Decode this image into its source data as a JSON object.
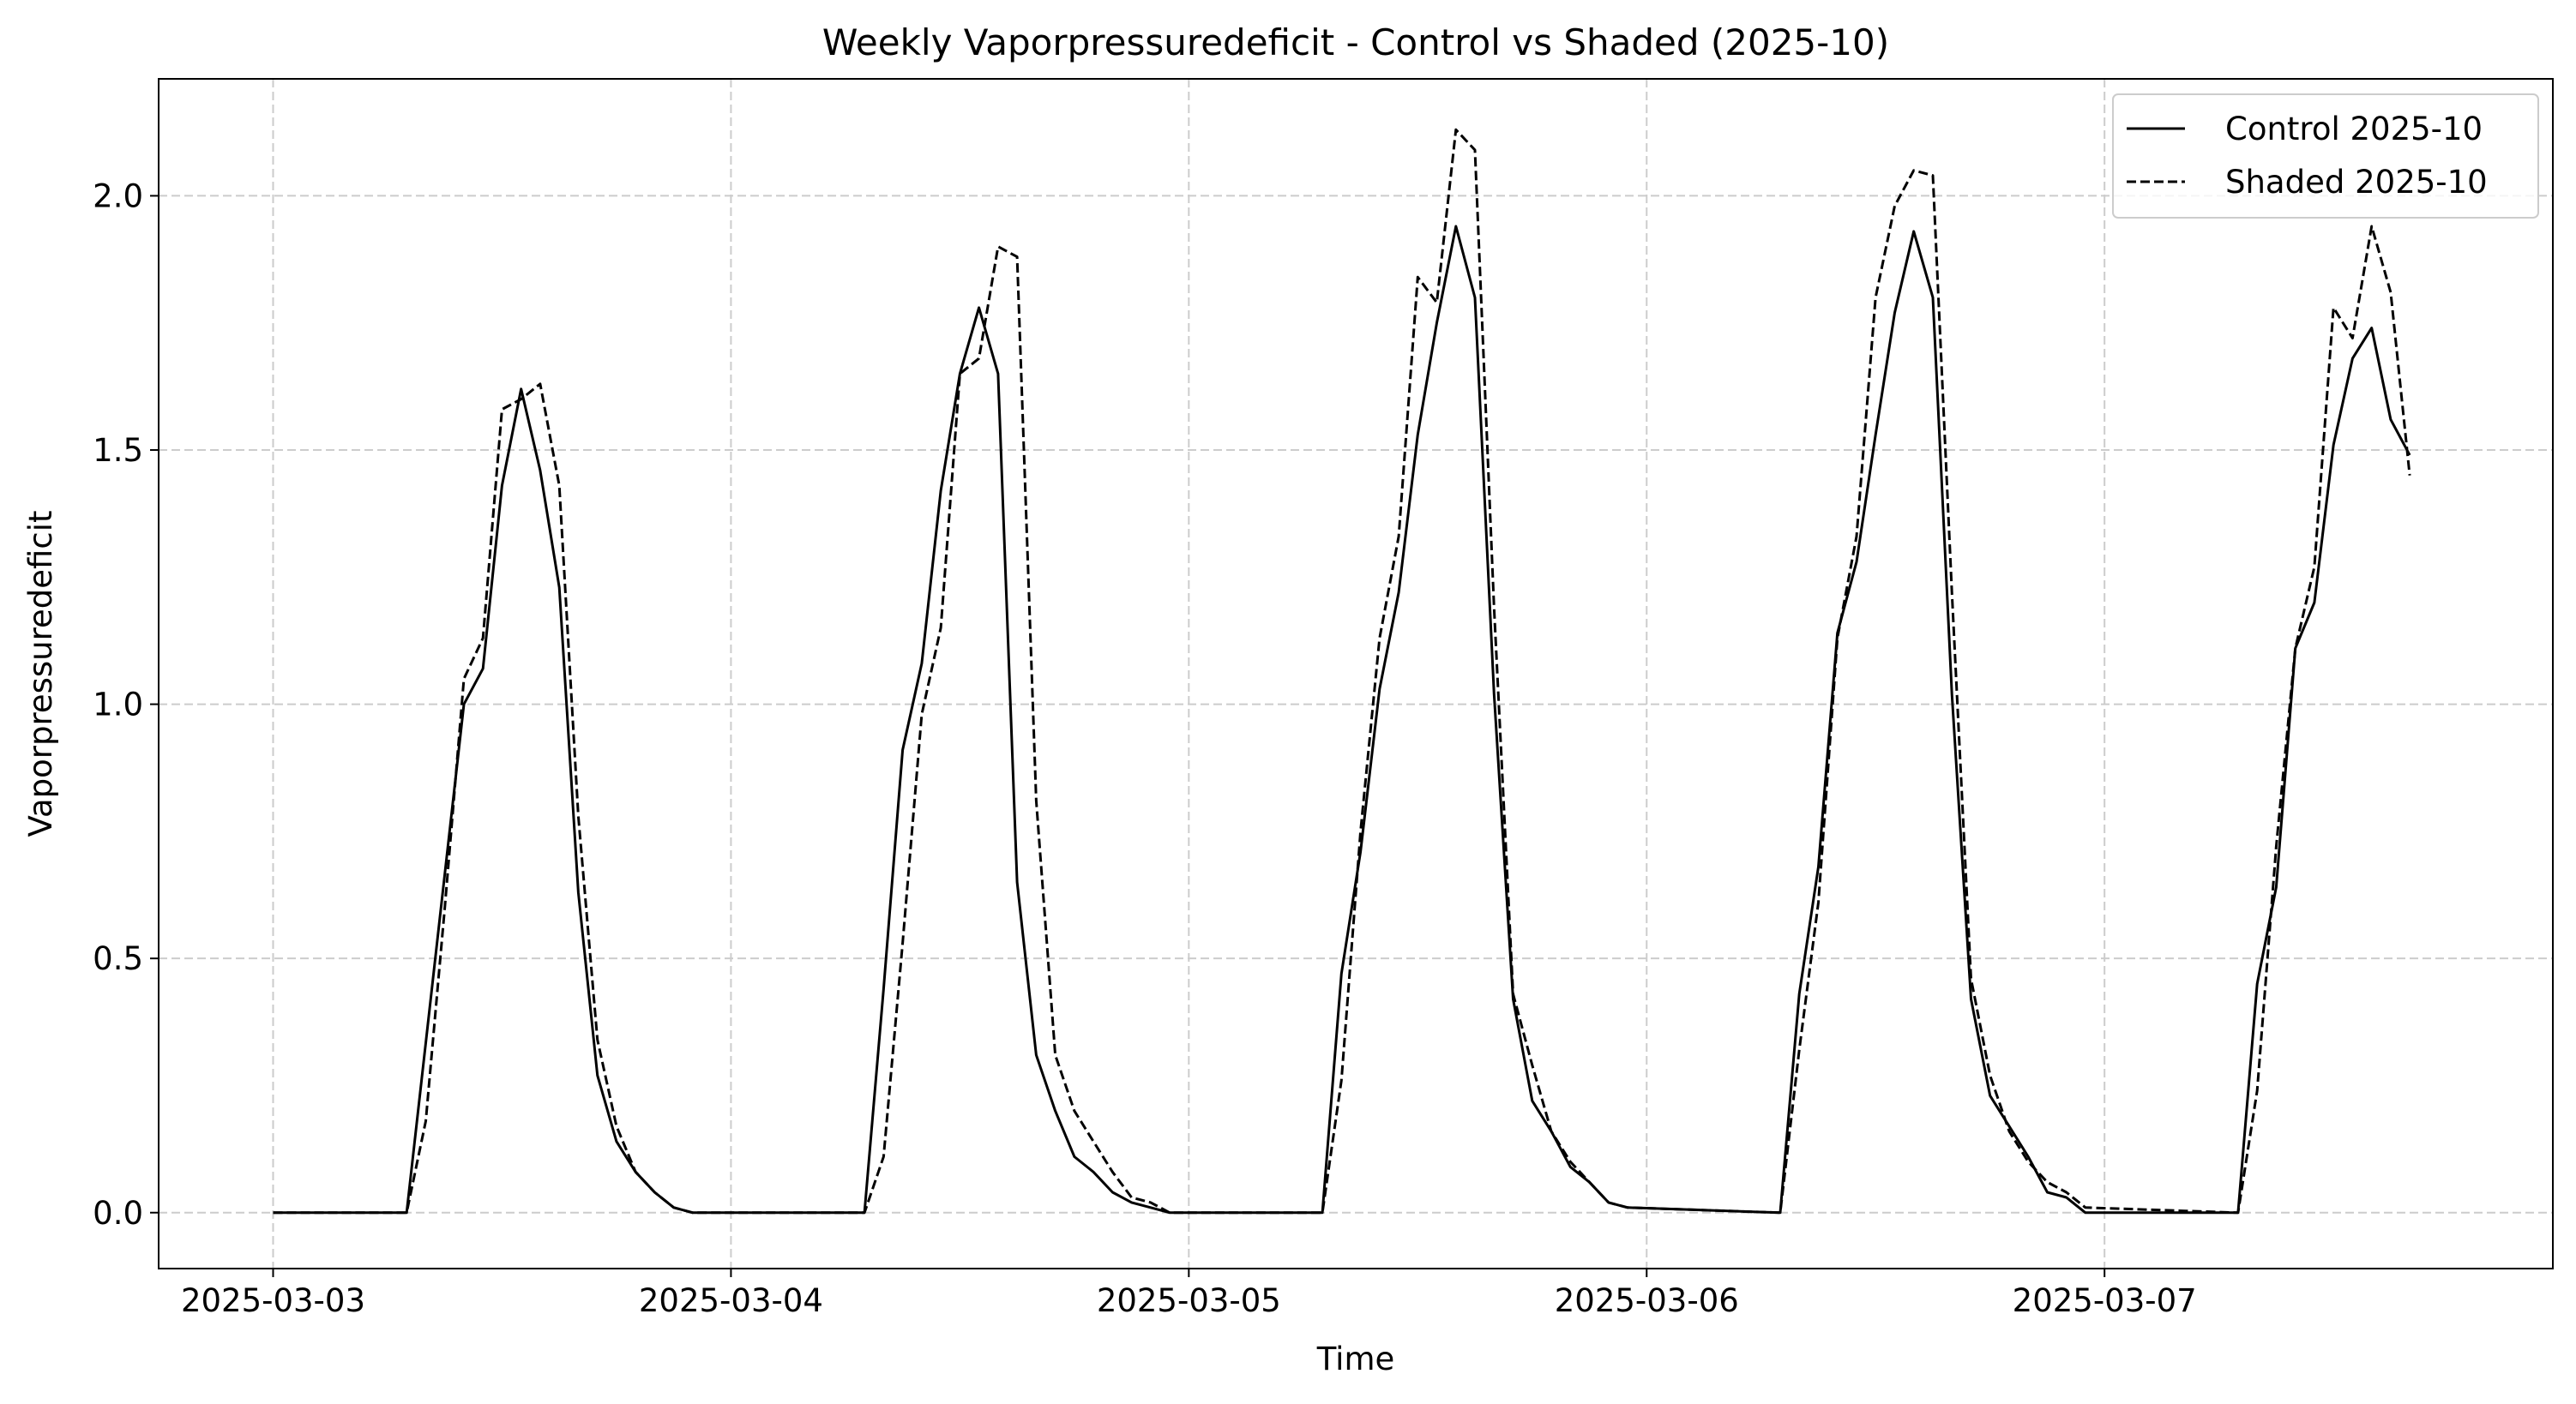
{
  "chart_data": {
    "type": "line",
    "title": "Weekly Vaporpressuredeficit - Control vs Shaded (2025-10)",
    "xlabel": "Time",
    "ylabel": "Vaporpressuredeficit",
    "x_axis_type": "datetime",
    "xlim": [
      "2025-03-02 18:00",
      "2025-03-07 23:30"
    ],
    "ylim": [
      -0.11,
      2.23
    ],
    "xticks": [
      "2025-03-03",
      "2025-03-04",
      "2025-03-05",
      "2025-03-06",
      "2025-03-07"
    ],
    "yticks": [
      0.0,
      0.5,
      1.0,
      1.5,
      2.0
    ],
    "ytick_labels": [
      "0.0",
      "0.5",
      "1.0",
      "1.5",
      "2.0"
    ],
    "grid": true,
    "grid_style": "dashed",
    "legend_position": "top-right",
    "series": [
      {
        "name": "Control 2025-10",
        "line_style": "solid",
        "color": "#000000",
        "x": [
          "2025-03-03 00:00",
          "2025-03-03 07:00",
          "2025-03-03 10:00",
          "2025-03-03 11:00",
          "2025-03-03 12:00",
          "2025-03-03 13:00",
          "2025-03-03 14:00",
          "2025-03-03 15:00",
          "2025-03-03 16:00",
          "2025-03-03 17:00",
          "2025-03-03 18:00",
          "2025-03-03 19:00",
          "2025-03-03 20:00",
          "2025-03-03 21:00",
          "2025-03-03 22:00",
          "2025-03-04 07:00",
          "2025-03-04 08:00",
          "2025-03-04 09:00",
          "2025-03-04 10:00",
          "2025-03-04 11:00",
          "2025-03-04 12:00",
          "2025-03-04 13:00",
          "2025-03-04 14:00",
          "2025-03-04 15:00",
          "2025-03-04 16:00",
          "2025-03-04 17:00",
          "2025-03-04 18:00",
          "2025-03-04 19:00",
          "2025-03-04 20:00",
          "2025-03-04 21:00",
          "2025-03-04 22:00",
          "2025-03-04 23:00",
          "2025-03-05 07:00",
          "2025-03-05 08:00",
          "2025-03-05 09:00",
          "2025-03-05 10:00",
          "2025-03-05 11:00",
          "2025-03-05 12:00",
          "2025-03-05 13:00",
          "2025-03-05 14:00",
          "2025-03-05 15:00",
          "2025-03-05 16:00",
          "2025-03-05 17:00",
          "2025-03-05 18:00",
          "2025-03-05 19:00",
          "2025-03-05 20:00",
          "2025-03-05 21:00",
          "2025-03-05 22:00",
          "2025-03-05 23:00",
          "2025-03-06 07:00",
          "2025-03-06 08:00",
          "2025-03-06 09:00",
          "2025-03-06 10:00",
          "2025-03-06 11:00",
          "2025-03-06 12:00",
          "2025-03-06 13:00",
          "2025-03-06 14:00",
          "2025-03-06 15:00",
          "2025-03-06 16:00",
          "2025-03-06 17:00",
          "2025-03-06 18:00",
          "2025-03-06 19:00",
          "2025-03-06 20:00",
          "2025-03-06 21:00",
          "2025-03-06 22:00",
          "2025-03-06 23:00",
          "2025-03-07 07:00",
          "2025-03-07 08:00",
          "2025-03-07 09:00",
          "2025-03-07 10:00",
          "2025-03-07 11:00",
          "2025-03-07 12:00",
          "2025-03-07 13:00",
          "2025-03-07 14:00",
          "2025-03-07 15:00",
          "2025-03-07 16:00"
        ],
        "y": [
          0.0,
          0.0,
          1.0,
          1.07,
          1.43,
          1.62,
          1.46,
          1.23,
          0.63,
          0.27,
          0.14,
          0.08,
          0.04,
          0.01,
          0.0,
          0.0,
          0.44,
          0.91,
          1.08,
          1.42,
          1.65,
          1.78,
          1.65,
          0.65,
          0.31,
          0.2,
          0.11,
          0.08,
          0.04,
          0.02,
          0.01,
          0.0,
          0.0,
          0.47,
          0.71,
          1.03,
          1.22,
          1.53,
          1.75,
          1.94,
          1.8,
          1.02,
          0.42,
          0.22,
          0.16,
          0.09,
          0.06,
          0.02,
          0.01,
          0.0,
          0.43,
          0.68,
          1.14,
          1.28,
          1.53,
          1.77,
          1.93,
          1.8,
          1.02,
          0.42,
          0.23,
          0.17,
          0.11,
          0.04,
          0.03,
          0.0,
          0.0,
          0.45,
          0.64,
          1.11,
          1.2,
          1.51,
          1.68,
          1.74,
          1.56,
          1.49
        ]
      },
      {
        "name": "Shaded 2025-10",
        "line_style": "dashed",
        "color": "#000000",
        "x": [
          "2025-03-03 00:00",
          "2025-03-03 07:00",
          "2025-03-03 08:00",
          "2025-03-03 09:00",
          "2025-03-03 10:00",
          "2025-03-03 11:00",
          "2025-03-03 12:00",
          "2025-03-03 13:00",
          "2025-03-03 14:00",
          "2025-03-03 15:00",
          "2025-03-03 16:00",
          "2025-03-03 17:00",
          "2025-03-03 18:00",
          "2025-03-03 19:00",
          "2025-03-03 20:00",
          "2025-03-03 21:00",
          "2025-03-03 22:00",
          "2025-03-04 07:00",
          "2025-03-04 08:00",
          "2025-03-04 09:00",
          "2025-03-04 10:00",
          "2025-03-04 11:00",
          "2025-03-04 12:00",
          "2025-03-04 13:00",
          "2025-03-04 14:00",
          "2025-03-04 15:00",
          "2025-03-04 16:00",
          "2025-03-04 17:00",
          "2025-03-04 18:00",
          "2025-03-04 19:00",
          "2025-03-04 20:00",
          "2025-03-04 21:00",
          "2025-03-04 22:00",
          "2025-03-04 23:00",
          "2025-03-05 07:00",
          "2025-03-05 08:00",
          "2025-03-05 09:00",
          "2025-03-05 10:00",
          "2025-03-05 11:00",
          "2025-03-05 12:00",
          "2025-03-05 13:00",
          "2025-03-05 14:00",
          "2025-03-05 15:00",
          "2025-03-05 16:00",
          "2025-03-05 17:00",
          "2025-03-05 18:00",
          "2025-03-05 19:00",
          "2025-03-05 20:00",
          "2025-03-05 21:00",
          "2025-03-05 22:00",
          "2025-03-05 23:00",
          "2025-03-06 07:00",
          "2025-03-06 08:00",
          "2025-03-06 09:00",
          "2025-03-06 10:00",
          "2025-03-06 11:00",
          "2025-03-06 12:00",
          "2025-03-06 13:00",
          "2025-03-06 14:00",
          "2025-03-06 15:00",
          "2025-03-06 16:00",
          "2025-03-06 17:00",
          "2025-03-06 18:00",
          "2025-03-06 19:00",
          "2025-03-06 20:00",
          "2025-03-06 21:00",
          "2025-03-06 22:00",
          "2025-03-06 23:00",
          "2025-03-07 07:00",
          "2025-03-07 08:00",
          "2025-03-07 09:00",
          "2025-03-07 10:00",
          "2025-03-07 11:00",
          "2025-03-07 12:00",
          "2025-03-07 13:00",
          "2025-03-07 14:00",
          "2025-03-07 15:00",
          "2025-03-07 16:00"
        ],
        "y": [
          0.0,
          0.0,
          0.18,
          0.6,
          1.05,
          1.13,
          1.58,
          1.6,
          1.63,
          1.43,
          0.78,
          0.34,
          0.17,
          0.08,
          0.04,
          0.01,
          0.0,
          0.0,
          0.11,
          0.53,
          0.98,
          1.15,
          1.65,
          1.68,
          1.9,
          1.88,
          0.81,
          0.31,
          0.2,
          0.14,
          0.08,
          0.03,
          0.02,
          0.0,
          0.0,
          0.26,
          0.75,
          1.13,
          1.33,
          1.84,
          1.79,
          2.13,
          2.09,
          1.19,
          0.43,
          0.29,
          0.16,
          0.1,
          0.06,
          0.02,
          0.01,
          0.0,
          0.32,
          0.61,
          1.13,
          1.33,
          1.8,
          1.98,
          2.05,
          2.04,
          1.22,
          0.46,
          0.27,
          0.16,
          0.1,
          0.06,
          0.04,
          0.01,
          0.0,
          0.24,
          0.72,
          1.11,
          1.27,
          1.78,
          1.72,
          1.94,
          1.81,
          1.45
        ]
      }
    ]
  }
}
